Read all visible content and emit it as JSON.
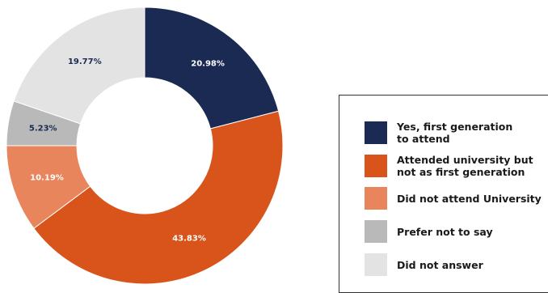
{
  "chart_data": {
    "type": "pie",
    "donut": true,
    "legend_position": "right",
    "slices": [
      {
        "label": "Yes, first generation\nto attend",
        "value": 20.98,
        "value_label": "20.98%",
        "color": "#1b2a52",
        "text_color": "#ffffff"
      },
      {
        "label": "Attended university but\nnot as first generation",
        "value": 43.83,
        "value_label": "43.83%",
        "color": "#d9541a",
        "text_color": "#ffffff"
      },
      {
        "label": "Did not attend University",
        "value": 10.19,
        "value_label": "10.19%",
        "color": "#e8855c",
        "text_color": "#ffffff"
      },
      {
        "label": "Prefer not to say",
        "value": 5.23,
        "value_label": "5.23%",
        "color": "#b9b9b9",
        "text_color": "#1b2a52"
      },
      {
        "label": "Did not answer",
        "value": 19.77,
        "value_label": "19.77%",
        "color": "#e3e3e3",
        "text_color": "#1b2a52"
      }
    ]
  }
}
